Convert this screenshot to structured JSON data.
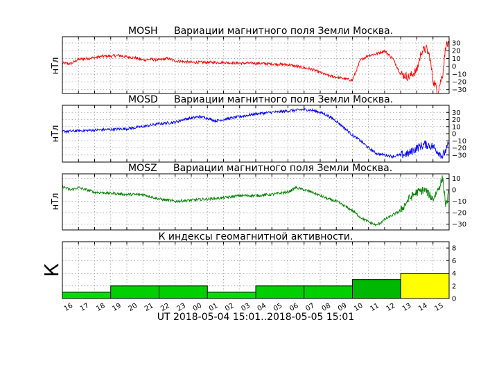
{
  "chart_data": [
    {
      "type": "line",
      "station": "MOSH",
      "title": "Вариации магнитного поля Земли Москва.",
      "ylabel": "нТл",
      "ylim": [
        -35,
        38
      ],
      "yticks": [
        30,
        20,
        10,
        0,
        -10,
        -20,
        -30
      ],
      "grid": true,
      "series": [
        {
          "color": "#ff0000",
          "x": [
            0,
            0.5,
            1,
            1.5,
            2,
            2.5,
            3,
            3.5,
            4,
            4.5,
            5,
            5.5,
            6,
            6.5,
            7,
            7.5,
            8,
            9,
            10,
            11,
            12,
            13,
            14,
            15,
            15.5,
            16,
            16.5,
            17,
            17.5,
            18,
            18.5,
            19,
            19.5,
            20,
            20.5,
            21,
            21.5,
            22,
            22.3,
            22.6,
            22.8,
            23,
            23.3,
            23.6,
            23.8,
            24
          ],
          "y": [
            4,
            3,
            9,
            10,
            11,
            13,
            13,
            14,
            12,
            11,
            8,
            9,
            8,
            10,
            7,
            6,
            5,
            5,
            5,
            4,
            4,
            3,
            2,
            -2,
            -4,
            -8,
            -12,
            -14,
            -16,
            -18,
            8,
            14,
            16,
            20,
            10,
            -10,
            -14,
            -5,
            20,
            22,
            12,
            -18,
            -32,
            -10,
            28,
            27
          ]
        }
      ]
    },
    {
      "type": "line",
      "station": "MOSD",
      "title": "Вариации магнитного поля Земли Москва.",
      "ylabel": "нТл",
      "ylim": [
        -40,
        40
      ],
      "yticks": [
        30,
        20,
        10,
        0,
        -10,
        -20,
        -30
      ],
      "grid": true,
      "series": [
        {
          "color": "#0000ff",
          "x": [
            0,
            1,
            2,
            3,
            4,
            5,
            6,
            7,
            7.5,
            8,
            8.5,
            9,
            9.5,
            10,
            10.5,
            11,
            12,
            13,
            14,
            15,
            15.5,
            16,
            16.5,
            17,
            17.5,
            18,
            18.5,
            19,
            19.5,
            20,
            20.5,
            21,
            21.5,
            22,
            22.5,
            23,
            23.3,
            23.6,
            24
          ],
          "y": [
            3,
            4,
            5,
            6,
            7,
            10,
            14,
            16,
            20,
            22,
            24,
            22,
            18,
            20,
            22,
            24,
            28,
            30,
            32,
            34,
            33,
            30,
            25,
            18,
            8,
            -2,
            -10,
            -20,
            -28,
            -30,
            -32,
            -30,
            -28,
            -20,
            -15,
            -18,
            -25,
            -32,
            -14
          ]
        }
      ]
    },
    {
      "type": "line",
      "station": "MOSZ",
      "title": "Вариации магнитного поля Земли Москва.",
      "ylabel": "нТл",
      "ylim": [
        -35,
        14
      ],
      "yticks": [
        10,
        0,
        -10,
        -20,
        -30
      ],
      "grid": true,
      "series": [
        {
          "color": "#008000",
          "x": [
            0,
            0.5,
            1,
            1.5,
            2,
            3,
            4,
            5,
            6,
            7,
            8,
            9,
            10,
            11,
            12,
            13,
            14,
            14.5,
            15,
            15.5,
            16,
            16.5,
            17,
            17.5,
            18,
            18.5,
            19,
            19.5,
            20,
            20.5,
            21,
            21.5,
            22,
            22.5,
            23,
            23.3,
            23.6,
            23.8,
            24
          ],
          "y": [
            3,
            0,
            2,
            0,
            -2,
            -3,
            -4,
            -4,
            -8,
            -10,
            -9,
            -8,
            -7,
            -5,
            -5,
            -4,
            -2,
            2,
            0,
            -2,
            -5,
            -8,
            -10,
            -14,
            -18,
            -24,
            -28,
            -31,
            -26,
            -22,
            -18,
            -8,
            -2,
            0,
            -8,
            0,
            10,
            -14,
            -2
          ]
        }
      ]
    },
    {
      "type": "bar",
      "title": "К индексы геомагнитной активности.",
      "ylabel": "К",
      "ylim": [
        0,
        9
      ],
      "yticks": [
        8,
        6,
        4,
        2,
        0
      ],
      "xlabel": "UT 2018-05-04 15:01..2018-05-05 15:01",
      "xticks": [
        "16",
        "17",
        "18",
        "19",
        "20",
        "21",
        "22",
        "23",
        "00",
        "01",
        "02",
        "03",
        "04",
        "05",
        "06",
        "07",
        "08",
        "09",
        "10",
        "11",
        "12",
        "13",
        "14",
        "15"
      ],
      "bars": [
        {
          "start": 0,
          "end": 3,
          "value": 1,
          "color": "#00e000"
        },
        {
          "start": 3,
          "end": 6,
          "value": 2,
          "color": "#00d000"
        },
        {
          "start": 6,
          "end": 9,
          "value": 2,
          "color": "#00d000"
        },
        {
          "start": 9,
          "end": 12,
          "value": 1,
          "color": "#00e000"
        },
        {
          "start": 12,
          "end": 15,
          "value": 2,
          "color": "#00d000"
        },
        {
          "start": 15,
          "end": 18,
          "value": 2,
          "color": "#00d000"
        },
        {
          "start": 18,
          "end": 21,
          "value": 3,
          "color": "#00b800"
        },
        {
          "start": 21,
          "end": 24,
          "value": 4,
          "color": "#ffff00"
        }
      ],
      "grid": true
    }
  ]
}
